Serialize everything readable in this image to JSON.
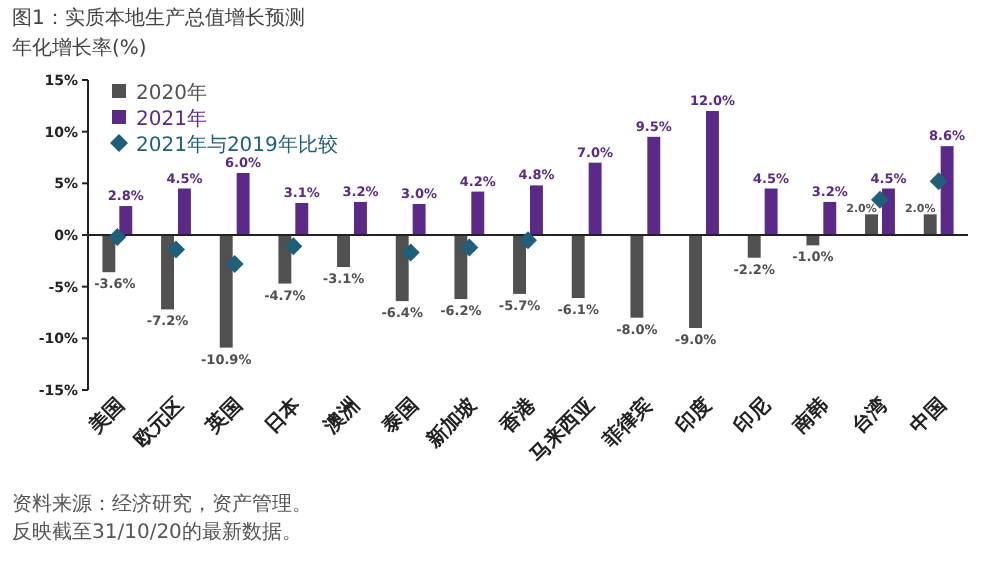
{
  "chart_data": {
    "type": "bar",
    "title": "图1：实质本地生产总值增长预测",
    "subtitle": "年化增长率(%)",
    "categories": [
      "美国",
      "欧元区",
      "英国",
      "日本",
      "澳洲",
      "泰国",
      "新加坡",
      "香港",
      "马来西亚",
      "菲律宾",
      "印度",
      "印尼",
      "南韩",
      "台湾",
      "中国"
    ],
    "series": [
      {
        "name": "2020年",
        "type": "bar",
        "color": "#505050",
        "values": [
          -3.6,
          -7.2,
          -10.9,
          -4.7,
          -3.1,
          -6.4,
          -6.2,
          -5.7,
          -6.1,
          -8.0,
          -9.0,
          -2.2,
          -1.0,
          2.0,
          2.0
        ],
        "value_labels": [
          "-3.6%",
          "-7.2%",
          "-10.9%",
          "-4.7%",
          "-3.1%",
          "-6.4%",
          "-6.2%",
          "-5.7%",
          "-6.1%",
          "-8.0%",
          "-9.0%",
          "-2.2%",
          "-1.0%",
          "2.0%",
          "2.0%"
        ]
      },
      {
        "name": "2021年",
        "type": "bar",
        "color": "#5b2a86",
        "values": [
          2.8,
          4.5,
          6.0,
          3.1,
          3.2,
          3.0,
          4.2,
          4.8,
          7.0,
          9.5,
          12.0,
          4.5,
          3.2,
          4.5,
          8.6
        ],
        "value_labels": [
          "2.8%",
          "4.5%",
          "6.0%",
          "3.1%",
          "3.2%",
          "3.0%",
          "4.2%",
          "4.8%",
          "7.0%",
          "9.5%",
          "12.0%",
          "4.5%",
          "3.2%",
          "4.5%",
          "8.6%"
        ]
      },
      {
        "name": "2021年与2019年比较",
        "type": "scatter",
        "marker": "diamond",
        "color": "#1f5f7a",
        "values": [
          -0.2,
          -1.4,
          -2.8,
          -1.1,
          null,
          -1.7,
          -1.2,
          -0.5,
          null,
          null,
          null,
          null,
          null,
          3.4,
          5.2
        ]
      }
    ],
    "ylim": [
      -15,
      15
    ],
    "yticks": [
      {
        "value": -15,
        "label": "-15%"
      },
      {
        "value": -10,
        "label": "-10%"
      },
      {
        "value": -5,
        "label": "-5%"
      },
      {
        "value": 0,
        "label": "0%"
      },
      {
        "value": 5,
        "label": "5%"
      },
      {
        "value": 10,
        "label": "10%"
      },
      {
        "value": 15,
        "label": "15%"
      }
    ],
    "legend": "top left",
    "annotations": [
      "资料来源：经济研究，资产管理。",
      "反映截至31/10/20的最新数据。"
    ]
  }
}
